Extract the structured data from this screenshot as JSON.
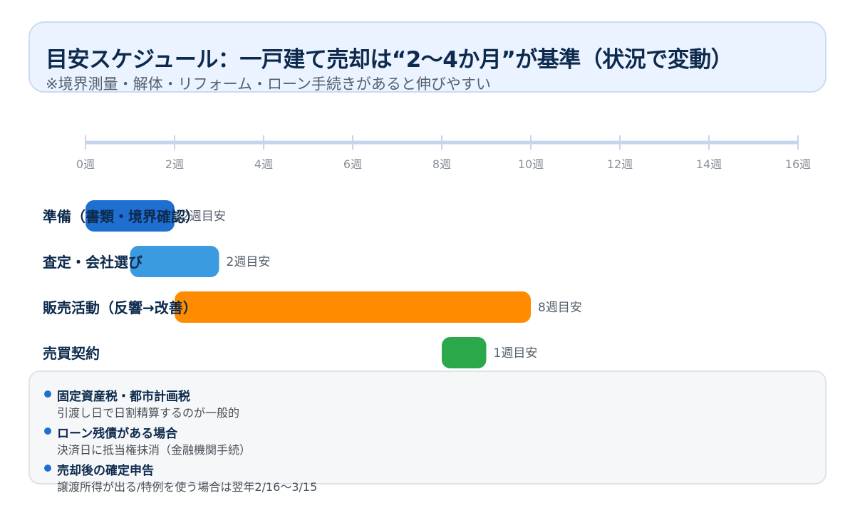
{
  "header": {
    "title": "目安スケジュール：一戸建て売却は“2〜4か月”が基準（状況で変動）",
    "subtitle": "※境界測量・解体・リフォーム・ローン手続きがあると伸びやすい"
  },
  "chart_data": {
    "type": "bar",
    "orientation": "horizontal-gantt",
    "x_unit": "週",
    "xlim": [
      0,
      16
    ],
    "x_ticks": [
      0,
      2,
      4,
      6,
      8,
      10,
      12,
      14,
      16
    ],
    "x_tick_labels": [
      "0週",
      "2週",
      "4週",
      "6週",
      "8週",
      "10週",
      "12週",
      "14週",
      "16週"
    ],
    "grid": false,
    "tasks": [
      {
        "label": "準備（書類・境界確認）",
        "start": 0,
        "duration": 2,
        "duration_label": "2週目安",
        "color": "#1f6fd1"
      },
      {
        "label": "査定・会社選び",
        "start": 1,
        "duration": 2,
        "duration_label": "2週目安",
        "color": "#3b9be0"
      },
      {
        "label": "販売活動（反響→改善）",
        "start": 2,
        "duration": 8,
        "duration_label": "8週目安",
        "color": "#ff8c00"
      },
      {
        "label": "売買契約",
        "start": 8,
        "duration": 1,
        "duration_label": "1週目安",
        "color": "#2aa84a"
      }
    ]
  },
  "notes": [
    {
      "title": "固定資産税・都市計画税",
      "body": "引渡し日で日割精算するのが一般的"
    },
    {
      "title": "ローン残債がある場合",
      "body": "決済日に抵当権抹消（金融機関手続）"
    },
    {
      "title": "売却後の確定申告",
      "body": "譲渡所得が出る/特例を使う場合は翌年2/16〜3/15"
    }
  ],
  "colors": {
    "axis": "#c5d5eb",
    "tick_label": "#8a9099",
    "task_label": "#0d2a4d",
    "duration_label": "#555f6b",
    "note_dot": "#1f6fd1"
  }
}
